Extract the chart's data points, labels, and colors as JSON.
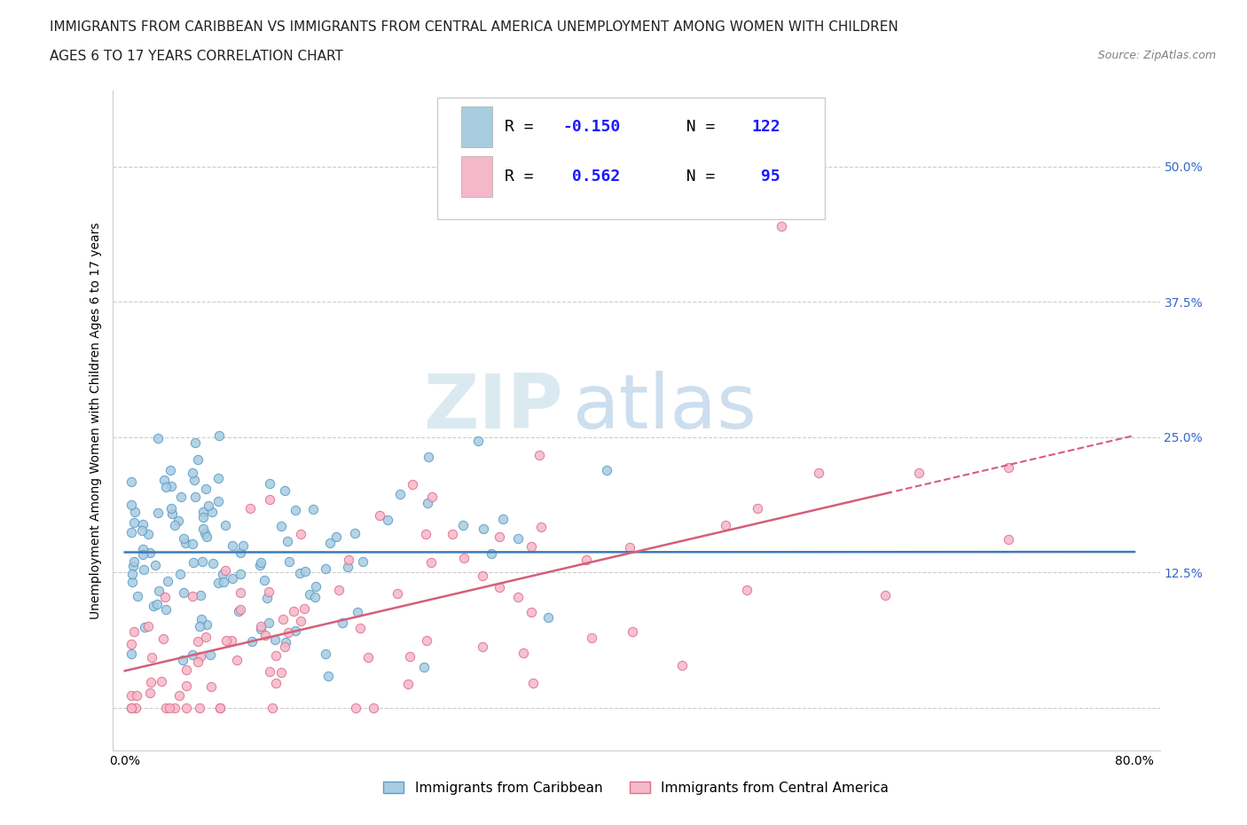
{
  "title_line1": "IMMIGRANTS FROM CARIBBEAN VS IMMIGRANTS FROM CENTRAL AMERICA UNEMPLOYMENT AMONG WOMEN WITH CHILDREN",
  "title_line2": "AGES 6 TO 17 YEARS CORRELATION CHART",
  "source": "Source: ZipAtlas.com",
  "ylabel": "Unemployment Among Women with Children Ages 6 to 17 years",
  "caribbean_color": "#a8cce0",
  "central_america_color": "#f5b8c8",
  "caribbean_edge_color": "#5b9ec9",
  "central_america_edge_color": "#e07090",
  "caribbean_line_color": "#3d7ab5",
  "central_america_line_color": "#d45f7a",
  "R_caribbean": -0.15,
  "N_caribbean": 122,
  "R_central_america": 0.562,
  "N_central_america": 95,
  "watermark_zip": "ZIP",
  "watermark_atlas": "atlas",
  "legend_label_caribbean": "Immigrants from Caribbean",
  "legend_label_central_america": "Immigrants from Central America",
  "legend_R_color": "#1a1aff",
  "legend_N_color": "#1a1aff",
  "title_color": "#222222",
  "ytick_color": "#3366cc",
  "xlim": [
    -0.01,
    0.82
  ],
  "ylim": [
    -0.04,
    0.57
  ],
  "yticks": [
    0.0,
    0.125,
    0.25,
    0.375,
    0.5
  ],
  "ytick_labels": [
    "",
    "12.5%",
    "25.0%",
    "37.5%",
    "50.0%"
  ],
  "xticks": [
    0.0,
    0.1,
    0.2,
    0.3,
    0.4,
    0.5,
    0.6,
    0.7,
    0.8
  ],
  "xtick_labels": [
    "0.0%",
    "",
    "",
    "",
    "",
    "",
    "",
    "",
    "80.0%"
  ]
}
